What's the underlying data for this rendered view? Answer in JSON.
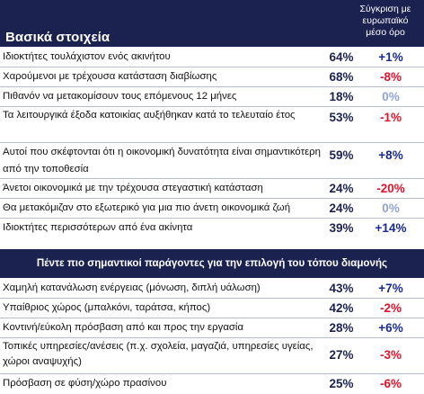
{
  "header": {
    "title": "Βασικά στοιχεία",
    "compare_line1": "Σύγκριση με",
    "compare_line2": "ευρωπαϊκό",
    "compare_line3": "μέσο όρο"
  },
  "section1": [
    {
      "label": "Ιδιοκτήτες τουλάχιστον ενός ακινήτου",
      "pct": "64%",
      "diff": "+1%",
      "tone": "pos"
    },
    {
      "label": "Χαρούμενοι με τρέχουσα κατάσταση διαβίωσης",
      "pct": "68%",
      "diff": "-8%",
      "tone": "neg"
    },
    {
      "label": "Πιθανόν να μετακομίσουν τους επόμενους 12 μήνες",
      "pct": "18%",
      "diff": "0%",
      "tone": "zero"
    },
    {
      "label": "Τα λειτουργικά έξοδα κατοικίας αυξήθηκαν κατά το τελευταίο έτος",
      "pct": "53%",
      "diff": "-1%",
      "tone": "neg"
    },
    {
      "label": "Αυτοί που σκέφτονται ότι η οικονομική δυνατότητα είναι σημαντικότερη από την τοποθεσία",
      "pct": "59%",
      "diff": "+8%",
      "tone": "pos"
    },
    {
      "label": "Άνετοι οικονομικά με την τρέχουσα στεγαστική κατάσταση",
      "pct": "24%",
      "diff": "-20%",
      "tone": "neg"
    },
    {
      "label": "Θα μετακόμιζαν στο εξωτερικό για μια πιο άνετη οικονομικά ζωή",
      "pct": "24%",
      "diff": "0%",
      "tone": "zero"
    },
    {
      "label": "Ιδιοκτήτες περισσότερων από ένα ακίνητα",
      "pct": "39%",
      "diff": "+14%",
      "tone": "pos"
    }
  ],
  "band": {
    "text": "Πέντε πιο σημαντικοί παράγοντες για την επιλογή του τόπου διαμονής"
  },
  "section2": [
    {
      "label": "Χαμηλή κατανάλωση ενέργειας (μόνωση, διπλή υάλωση)",
      "pct": "43%",
      "diff": "+7%",
      "tone": "pos"
    },
    {
      "label": "Υπαίθριος χώρος (μπαλκόνι, ταράτσα, κήπος)",
      "pct": "42%",
      "diff": "-2%",
      "tone": "neg"
    },
    {
      "label": "Κοντινή/εύκολη πρόσβαση από και προς την εργασία",
      "pct": "28%",
      "diff": "+6%",
      "tone": "pos"
    },
    {
      "label": "Τοπικές υπηρεσίες/ανέσεις (π.χ. σχολεία, μαγαζιά, υπηρεσίες υγείας, χώροι αναψυχής)",
      "pct": "27%",
      "diff": "-3%",
      "tone": "neg"
    },
    {
      "label": "Πρόσβαση σε φύση/χώρο πρασίνου",
      "pct": "25%",
      "diff": "-6%",
      "tone": "neg"
    }
  ]
}
